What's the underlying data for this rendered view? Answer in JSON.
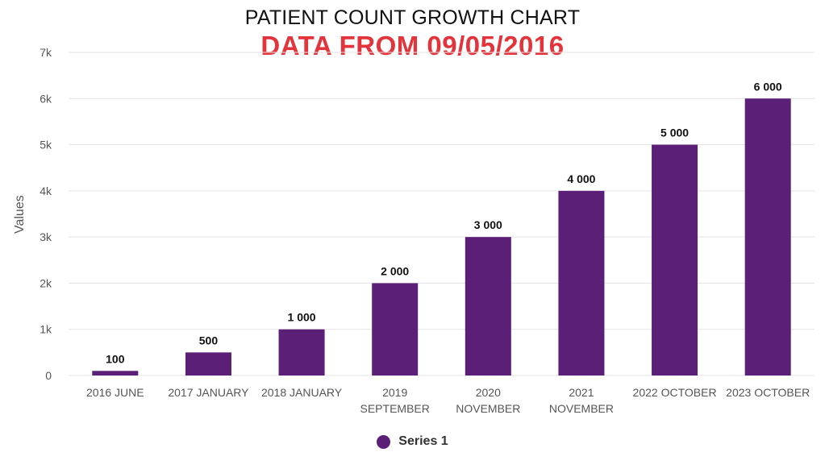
{
  "chart_data": {
    "type": "bar",
    "title": "PATIENT COUNT GROWTH CHART",
    "subtitle": "DATA FROM 09/05/2016",
    "xlabel": "",
    "ylabel": "Values",
    "ylim": [
      0,
      7000
    ],
    "yticks": [
      {
        "value": 0,
        "label": "0"
      },
      {
        "value": 1000,
        "label": "1k"
      },
      {
        "value": 2000,
        "label": "2k"
      },
      {
        "value": 3000,
        "label": "3k"
      },
      {
        "value": 4000,
        "label": "4k"
      },
      {
        "value": 5000,
        "label": "5k"
      },
      {
        "value": 6000,
        "label": "6k"
      },
      {
        "value": 7000,
        "label": "7k"
      }
    ],
    "categories": [
      [
        "2016 JUNE"
      ],
      [
        "2017 JANUARY"
      ],
      [
        "2018 JANUARY"
      ],
      [
        "2019",
        "SEPTEMBER"
      ],
      [
        "2020",
        "NOVEMBER"
      ],
      [
        "2021",
        "NOVEMBER"
      ],
      [
        "2022 OCTOBER"
      ],
      [
        "2023 OCTOBER"
      ]
    ],
    "series": [
      {
        "name": "Series 1",
        "values": [
          100,
          500,
          1000,
          2000,
          3000,
          4000,
          5000,
          6000
        ],
        "labels": [
          "100",
          "500",
          "1 000",
          "2 000",
          "3 000",
          "4 000",
          "5 000",
          "6 000"
        ]
      }
    ],
    "grid": true,
    "legend_position": "bottom",
    "colors": {
      "bar": "#5b1f78",
      "title": "#111111",
      "subtitle": "#e3333b",
      "grid": "#e3e3e3",
      "axis_text": "#555555"
    }
  }
}
